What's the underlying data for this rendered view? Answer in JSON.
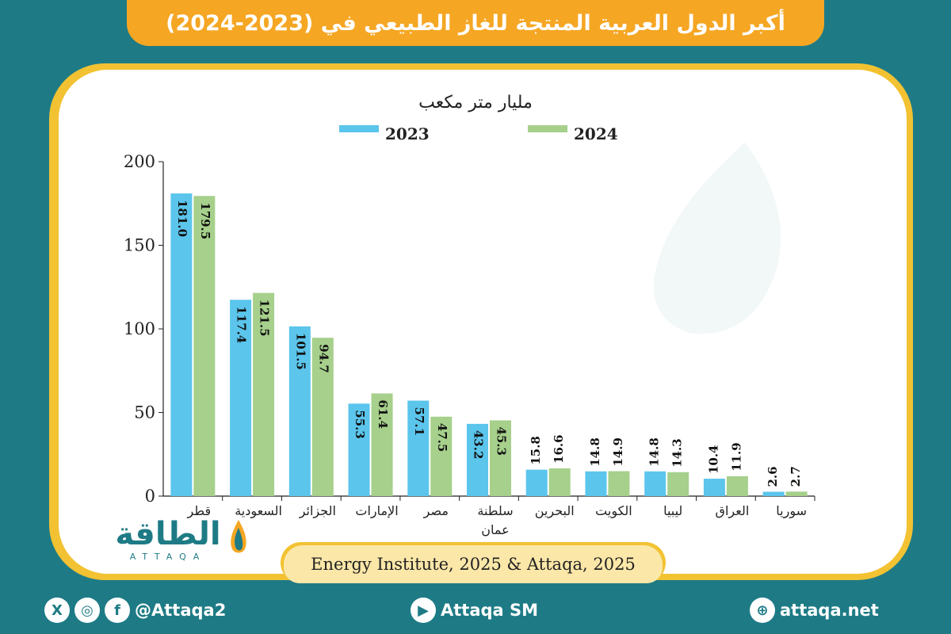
{
  "header": {
    "title": "أكبر الدول العربية المنتجة للغاز الطبيعي في (2023-2024)"
  },
  "colors": {
    "background": "#1e7b86",
    "title_bar": "#f5a623",
    "card_border": "#f2c232",
    "series_2023": "#5bc5ec",
    "series_2024": "#a6d08b"
  },
  "logo": {
    "text": "الطاقة",
    "sub": "ATTAQA"
  },
  "source": {
    "text": "Energy Institute, 2025 & Attaqa, 2025"
  },
  "footer": {
    "social_handle": "@Attaqa2",
    "youtube": "Attaqa SM",
    "website": "attaqa.net",
    "icons": [
      "x-icon",
      "instagram-icon",
      "facebook-icon",
      "youtube-icon",
      "globe-icon"
    ]
  },
  "chart_data": {
    "type": "bar",
    "title": "مليار متر مكعب",
    "categories": [
      "قطر",
      "السعودية",
      "الجزائر",
      "الإمارات",
      "مصر",
      "سلطنة عمان",
      "البحرين",
      "الكويت",
      "ليبيا",
      "العراق",
      "سوريا"
    ],
    "series": [
      {
        "name": "2023",
        "values": [
          181.0,
          117.4,
          101.5,
          55.3,
          57.1,
          43.2,
          15.8,
          14.8,
          14.8,
          10.4,
          2.6
        ]
      },
      {
        "name": "2024",
        "values": [
          179.5,
          121.5,
          94.7,
          61.4,
          47.5,
          45.3,
          16.6,
          14.9,
          14.3,
          11.9,
          2.7
        ]
      }
    ],
    "ylim": [
      0,
      200
    ],
    "yticks": [
      0,
      50,
      100,
      150,
      200
    ],
    "legend": "top-center",
    "grid": false
  }
}
